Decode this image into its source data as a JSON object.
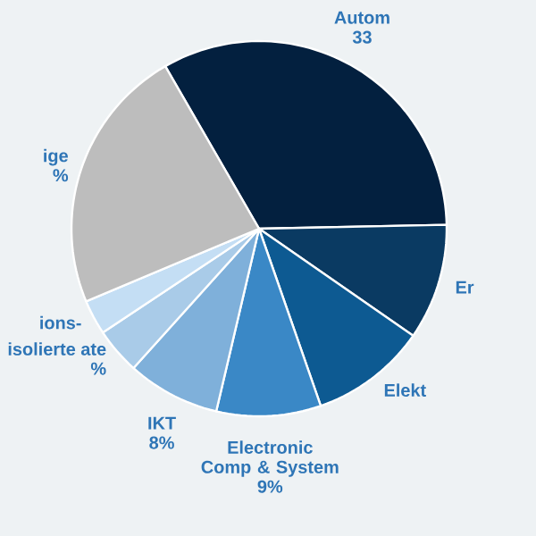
{
  "chart_data": {
    "type": "pie",
    "categories": [
      "Autom",
      "Er",
      "Elekt",
      "Electronic Comp & System",
      "IKT",
      "isolierte ate",
      "ions-",
      "ige"
    ],
    "values": [
      33,
      10,
      10,
      9,
      8,
      4,
      3,
      23
    ],
    "colors": [
      "#03203f",
      "#0a3a62",
      "#0d5a92",
      "#3a88c6",
      "#7fb0da",
      "#a9cbe8",
      "#c4def4",
      "#bdbdbd"
    ],
    "value_labels": [
      "33",
      null,
      null,
      "9%",
      "8%",
      "%",
      null,
      "%"
    ]
  }
}
